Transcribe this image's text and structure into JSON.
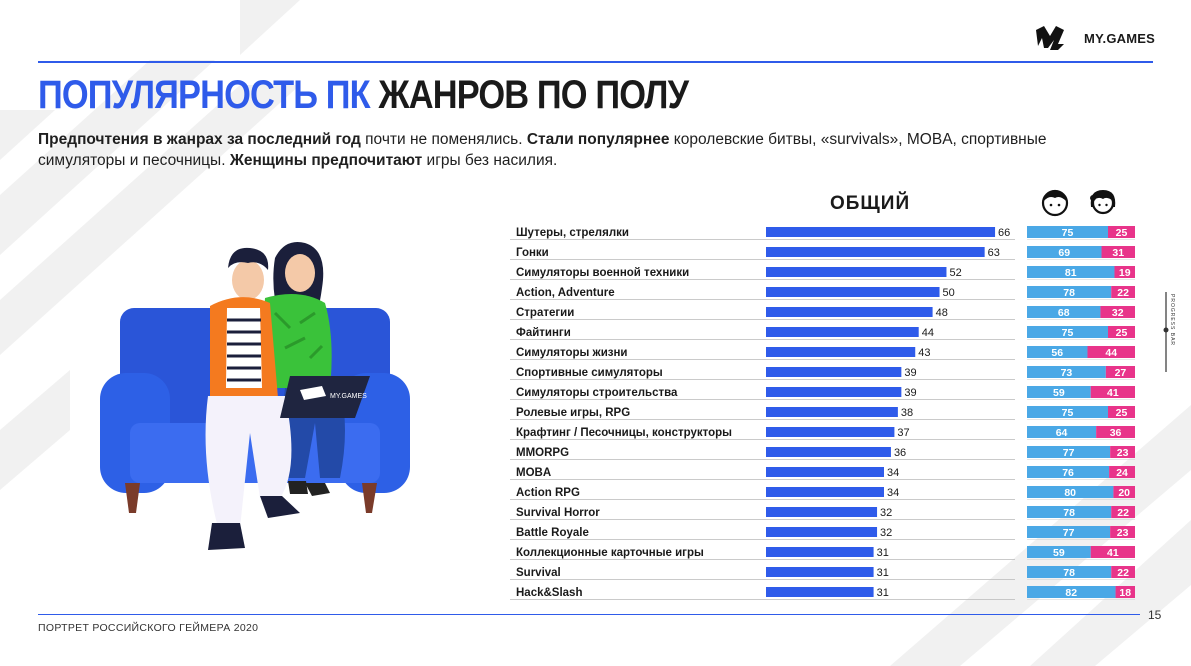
{
  "brand": {
    "wordmark": "MY.GAMES",
    "laptop_logo": "MY.GAMES"
  },
  "title": {
    "part1": "ПОПУЛЯРНОСТЬ ПК",
    "part2": "ЖАНРОВ ПО ПОЛУ"
  },
  "subtitle": {
    "s1_bold": "Предпочтения в жанрах за последний год",
    "s1_rest": " почти не поменялись. ",
    "s2_bold": "Стали популярнее",
    "s2_rest": " королевские битвы, «survivals», MOBA, спортивные симуляторы и песочницы. ",
    "s3_bold": "Женщины предпочитают",
    "s3_rest": " игры без насилия."
  },
  "icons": {
    "male": "male-face-icon",
    "female": "female-face-icon",
    "logo": "mygames-logo-icon"
  },
  "colors": {
    "accent": "#2f5bea",
    "male": "#4aa8e6",
    "female": "#e8348a",
    "text": "#1a1a1a"
  },
  "footer": {
    "left": "ПОРТРЕТ РОССИЙСКОГО ГЕЙМЕРА 2020",
    "page": "15"
  },
  "side_label": "PROGRESS BAR",
  "chart_data": {
    "type": "bar",
    "title": "ОБЩИЙ",
    "orientation": "horizontal",
    "xlim": [
      0,
      68
    ],
    "categories": [
      "Шутеры, стрелялки",
      "Гонки",
      "Симуляторы военной техники",
      "Action, Adventure",
      "Стратегии",
      "Файтинги",
      "Симуляторы жизни",
      "Спортивные симуляторы",
      "Симуляторы строительства",
      "Ролевые игры, RPG",
      "Крафтинг / Песочницы, конструкторы",
      "MMORPG",
      "MOBA",
      "Action RPG",
      "Survival Horror",
      "Battle Royale",
      "Коллекционные карточные игры",
      "Survival",
      "Hack&Slash"
    ],
    "values": [
      66,
      63,
      52,
      50,
      48,
      44,
      43,
      39,
      39,
      38,
      37,
      36,
      34,
      34,
      32,
      32,
      31,
      31,
      31
    ],
    "gender_split": {
      "type": "stacked_bar",
      "series": [
        {
          "name": "male",
          "values": [
            75,
            69,
            81,
            78,
            68,
            75,
            56,
            73,
            59,
            75,
            64,
            77,
            76,
            80,
            78,
            77,
            59,
            78,
            82
          ]
        },
        {
          "name": "female",
          "values": [
            25,
            31,
            19,
            22,
            32,
            25,
            44,
            27,
            41,
            25,
            36,
            23,
            24,
            20,
            22,
            23,
            41,
            22,
            18
          ]
        }
      ]
    }
  }
}
